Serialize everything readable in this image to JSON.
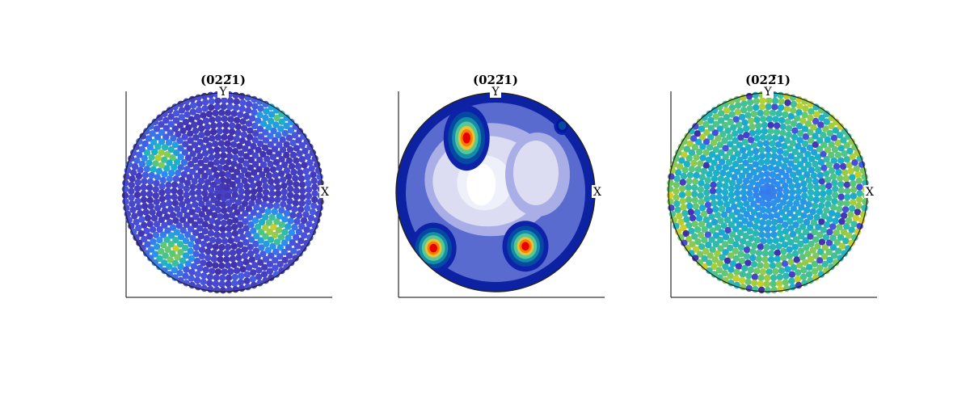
{
  "figure": {
    "background": "#ffffff",
    "panels": [
      {
        "id": "left",
        "kind": "scatter",
        "title": "(02ĥ2̅ 1)",
        "x_label": "X",
        "y_label": "Y",
        "style": "points-dark"
      },
      {
        "id": "middle",
        "kind": "contour",
        "title": "(02̅ 1)",
        "x_label": "X",
        "y_label": "Y"
      },
      {
        "id": "right",
        "kind": "scatter",
        "title": "(02ĥ2̅ 1)",
        "x_label": "X",
        "y_label": "Y",
        "style": "points-bright"
      }
    ]
  },
  "chart_data": [
    {
      "type": "scatter",
      "title": "(022̅1)",
      "projection": "pole figure (stereographic)",
      "axes": [
        "X",
        "Y"
      ],
      "colormap": [
        "#3b1f8e",
        "#4a4fd9",
        "#2f8bf0",
        "#1bb0c8",
        "#4cc48a",
        "#a7cc3b",
        "#f2d21b"
      ],
      "high_density_regions": [
        {
          "azimuth_deg": 150,
          "radius": 0.7,
          "level": 0.8
        },
        {
          "azimuth_deg": 230,
          "radius": 0.78,
          "level": 0.9
        },
        {
          "azimuth_deg": 322,
          "radius": 0.62,
          "level": 0.85
        },
        {
          "azimuth_deg": 55,
          "radius": 0.92,
          "level": 0.5
        }
      ]
    },
    {
      "type": "heatmap",
      "title": "(022̅1)",
      "projection": "pole figure (stereographic)",
      "axes": [
        "X",
        "Y"
      ],
      "colormap": [
        "#ffffff",
        "#dcdcf2",
        "#a9aee6",
        "#5a6bd0",
        "#1b2fb8",
        "#00159a",
        "#0a7fa8",
        "#37c3a8",
        "#d9d84a",
        "#ff7a00",
        "#e60000"
      ],
      "peaks": [
        {
          "azimuth_deg": 118,
          "radius": 0.62,
          "level": 1.0
        },
        {
          "azimuth_deg": 222,
          "radius": 0.84,
          "level": 1.0
        },
        {
          "azimuth_deg": 299,
          "radius": 0.62,
          "level": 1.0
        },
        {
          "azimuth_deg": 45,
          "radius": 0.95,
          "level": 0.55
        },
        {
          "azimuth_deg": 0,
          "radius": 0.98,
          "level": 0.45
        }
      ],
      "low_region": {
        "azimuth_deg": 135,
        "radius": 0.25
      }
    },
    {
      "type": "scatter",
      "title": "(022̅1)",
      "projection": "pole figure (stereographic)",
      "axes": [
        "X",
        "Y"
      ],
      "colormap": [
        "#3b1f8e",
        "#4a4fd9",
        "#2f8bf0",
        "#1bb0c8",
        "#4cc48a",
        "#a7cc3b",
        "#f2d21b"
      ]
    }
  ]
}
